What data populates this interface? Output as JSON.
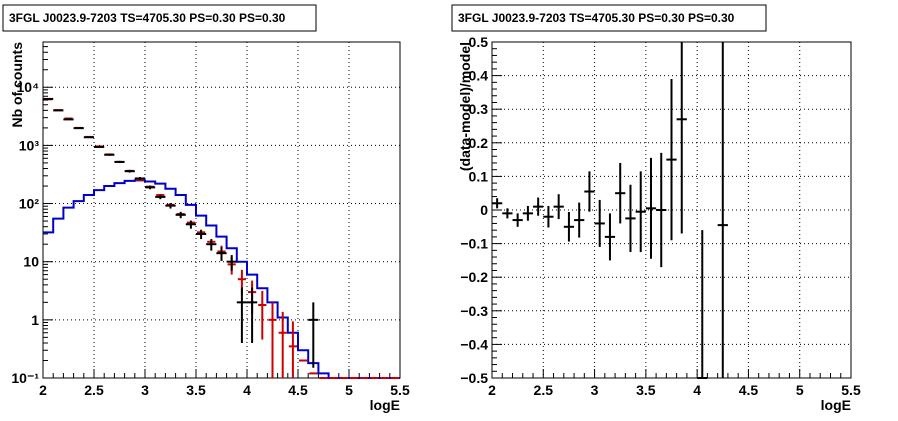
{
  "chart_data": [
    {
      "type": "line",
      "title": "3FGL J0023.9-7203 TS=4705.30 PS=0.30 PS=0.30",
      "xlabel": "logE",
      "ylabel": "Nb of counts",
      "xscale": "linear",
      "yscale": "log",
      "xlim": [
        2,
        5.5
      ],
      "ylim": [
        0.1,
        60000
      ],
      "grid": true,
      "x_tick_labels": [
        "2",
        "2.5",
        "3",
        "3.5",
        "4",
        "4.5",
        "5",
        "5.5"
      ],
      "y_tick_labels": [
        "10⁻¹",
        "1",
        "10",
        "10²",
        "10³",
        "10⁴"
      ],
      "colors": {
        "data": "#000000",
        "total_model": "#cc0000",
        "source_model": "#0000cc"
      },
      "bin_edges": [
        2.0,
        2.1,
        2.2,
        2.3,
        2.4,
        2.5,
        2.6,
        2.7,
        2.8,
        2.9,
        3.0,
        3.1,
        3.2,
        3.3,
        3.4,
        3.5,
        3.6,
        3.7,
        3.8,
        3.9,
        4.0,
        4.1,
        4.2,
        4.3,
        4.4,
        4.5,
        4.6,
        4.7,
        4.8,
        4.9,
        5.0,
        5.1,
        5.2,
        5.3,
        5.4,
        5.5
      ],
      "series": [
        {
          "role": "data",
          "x": [
            2.05,
            2.15,
            2.25,
            2.35,
            2.45,
            2.55,
            2.65,
            2.75,
            2.85,
            2.95,
            3.05,
            3.15,
            3.25,
            3.35,
            3.45,
            3.55,
            3.65,
            3.75,
            3.85,
            3.95,
            4.05,
            4.15,
            4.25,
            4.35,
            4.45,
            4.55,
            4.65
          ],
          "y": [
            6300,
            4000,
            2800,
            1980,
            1380,
            940,
            690,
            520,
            360,
            270,
            190,
            130,
            92,
            64,
            44,
            30,
            20,
            14,
            10,
            2,
            2,
            0,
            0,
            0,
            0,
            0,
            1
          ],
          "y_err_low": [
            80,
            63,
            53,
            44,
            37,
            31,
            26,
            23,
            19,
            16,
            14,
            11,
            10,
            8,
            7,
            5.5,
            4.5,
            3.7,
            3,
            1.6,
            1.6,
            0,
            0,
            0,
            0,
            0,
            0.85
          ],
          "y_err_high": [
            80,
            63,
            53,
            44,
            37,
            31,
            26,
            23,
            19,
            16,
            14,
            11,
            10,
            8,
            7,
            5.5,
            4.5,
            3.7,
            3,
            1.6,
            1.6,
            0,
            0,
            0,
            0,
            0,
            1
          ]
        },
        {
          "role": "total_model",
          "y": [
            6200,
            4050,
            2900,
            2000,
            1400,
            960,
            700,
            520,
            365,
            255,
            195,
            140,
            95,
            66,
            47,
            32,
            22,
            15,
            9,
            5,
            3,
            1.8,
            1.0,
            0.6,
            0.35,
            0.2,
            0.12,
            0.1,
            0.1,
            0.1,
            0.1,
            0.1,
            0.1,
            0.1,
            0.1
          ]
        },
        {
          "role": "source_model",
          "y": [
            32,
            55,
            85,
            110,
            140,
            170,
            200,
            225,
            245,
            250,
            240,
            220,
            180,
            140,
            95,
            62,
            42,
            27,
            17,
            10,
            6,
            3.5,
            2,
            1.1,
            0.6,
            0.3,
            0.18,
            0.12,
            0.1,
            0.1,
            0.1,
            0.1,
            0.1,
            0.1,
            0.1
          ]
        }
      ]
    },
    {
      "type": "scatter",
      "title": "3FGL J0023.9-7203 TS=4705.30 PS=0.30 PS=0.30",
      "xlabel": "logE",
      "ylabel": "(data-model)/model",
      "xscale": "linear",
      "yscale": "linear",
      "xlim": [
        2,
        5.5
      ],
      "ylim": [
        -0.5,
        0.5
      ],
      "grid": true,
      "x_tick_labels": [
        "2",
        "2.5",
        "3",
        "3.5",
        "4",
        "4.5",
        "5",
        "5.5"
      ],
      "y_tick_labels": [
        "−0.5",
        "−0.4",
        "−0.3",
        "−0.2",
        "−0.1",
        "0",
        "0.1",
        "0.2",
        "0.3",
        "0.4",
        "0.5"
      ],
      "series": [
        {
          "x": [
            2.05,
            2.15,
            2.25,
            2.35,
            2.45,
            2.55,
            2.65,
            2.75,
            2.85,
            2.95,
            3.05,
            3.15,
            3.25,
            3.35,
            3.45,
            3.55,
            3.65,
            3.75,
            3.85,
            4.05,
            4.25
          ],
          "y": [
            0.02,
            -0.01,
            -0.03,
            -0.01,
            0.01,
            -0.02,
            0.01,
            -0.05,
            -0.03,
            0.055,
            -0.04,
            -0.08,
            0.05,
            -0.025,
            -0.005,
            0.005,
            0.0,
            0.15,
            0.27,
            -0.5,
            -0.045
          ],
          "y_err": [
            0.015,
            0.015,
            0.02,
            0.022,
            0.027,
            0.032,
            0.037,
            0.044,
            0.052,
            0.06,
            0.07,
            0.07,
            0.09,
            0.1,
            0.12,
            0.15,
            0.17,
            0.24,
            0.34,
            0.44,
            0.6
          ]
        }
      ]
    }
  ]
}
